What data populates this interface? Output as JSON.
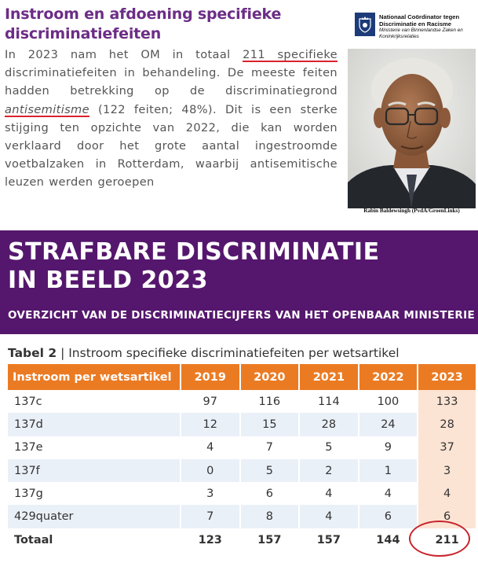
{
  "article": {
    "title": "Instroom en afdoening specifieke discriminatiefeiten",
    "body": {
      "p1": "In 2023 nam het OM in totaal ",
      "hl1": "211 specifieke",
      "p2": " discriminatiefeiten in behandeling. De meeste feiten hadden betrekking op de discriminatiegrond ",
      "hl2": "antisemitisme",
      "p3": " (122 feiten; 48%). Dit is een sterke stijging ten opzichte van 2022, die kan worden verklaard door het grote aantal ingestroomde voetbalzaken in Rotterdam, waarbij antisemitische leuzen werden geroepen"
    }
  },
  "logo": {
    "line1": "Nationaal Coördinator tegen",
    "line2": "Discriminatie en Racisme",
    "line3": "Ministerie van Binnenlandse Zaken en",
    "line4": "Koninkrijksrelaties"
  },
  "portrait": {
    "caption": "Rabin Baldewsingh (PvdA/GroenLinks)"
  },
  "banner": {
    "title_line1": "STRAFBARE DISCRIMINATIE",
    "title_line2": "IN BEELD 2023",
    "subtitle": "OVERZICHT VAN DE DISCRIMINATIECIJFERS VAN HET OPENBAAR MINISTERIE"
  },
  "table": {
    "caption_label": "Tabel 2",
    "caption_sep": " | ",
    "caption_text": "Instroom specifieke discriminatiefeiten per wetsartikel",
    "headers": [
      "Instroom per wetsartikel",
      "2019",
      "2020",
      "2021",
      "2022",
      "2023"
    ],
    "rows": [
      [
        "137c",
        "97",
        "116",
        "114",
        "100",
        "133"
      ],
      [
        "137d",
        "12",
        "15",
        "28",
        "24",
        "28"
      ],
      [
        "137e",
        "4",
        "7",
        "5",
        "9",
        "37"
      ],
      [
        "137f",
        "0",
        "5",
        "2",
        "1",
        "3"
      ],
      [
        "137g",
        "3",
        "6",
        "4",
        "4",
        "4"
      ],
      [
        "429quater",
        "7",
        "8",
        "4",
        "6",
        "6"
      ]
    ],
    "total": [
      "Totaal",
      "123",
      "157",
      "157",
      "144",
      "211"
    ]
  },
  "colors": {
    "title_purple": "#6c2d86",
    "banner_purple": "#55176d",
    "header_orange": "#eb7b23",
    "highlight_peach": "#fce4d4",
    "row_alt": "#eaf0f8",
    "annotation_red": "#d9232d"
  }
}
